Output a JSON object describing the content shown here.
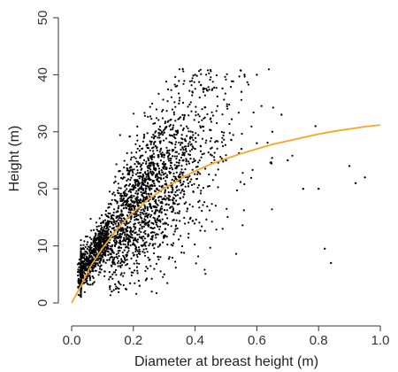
{
  "chart_data": {
    "type": "scatter",
    "xlabel": "Diameter at breast height (m)",
    "ylabel": "Height (m)",
    "xlim": [
      0.0,
      1.0
    ],
    "ylim": [
      0,
      50
    ],
    "xticks": [
      "0.0",
      "0.2",
      "0.4",
      "0.6",
      "0.8",
      "1.0"
    ],
    "yticks": [
      "0",
      "10",
      "20",
      "30",
      "40",
      "50"
    ],
    "grid": false,
    "point_color": "#000000",
    "fit_color": "#f5a623",
    "sample_points": [
      [
        0.03,
        4
      ],
      [
        0.04,
        6
      ],
      [
        0.05,
        8
      ],
      [
        0.06,
        7
      ],
      [
        0.07,
        9
      ],
      [
        0.08,
        11
      ],
      [
        0.1,
        12
      ],
      [
        0.12,
        14
      ],
      [
        0.15,
        16
      ],
      [
        0.18,
        18
      ],
      [
        0.2,
        20
      ],
      [
        0.22,
        21
      ],
      [
        0.25,
        22
      ],
      [
        0.28,
        24
      ],
      [
        0.3,
        26
      ],
      [
        0.35,
        25
      ],
      [
        0.4,
        27
      ],
      [
        0.45,
        26
      ],
      [
        0.5,
        25
      ],
      [
        0.55,
        27
      ],
      [
        0.6,
        28
      ],
      [
        0.65,
        30
      ],
      [
        0.7,
        25
      ],
      [
        0.75,
        20
      ],
      [
        0.8,
        20
      ],
      [
        0.82,
        9.5
      ],
      [
        0.84,
        7
      ],
      [
        0.9,
        24
      ],
      [
        0.92,
        21
      ],
      [
        0.95,
        22
      ],
      [
        0.6,
        40
      ],
      [
        0.56,
        40
      ],
      [
        0.4,
        40
      ],
      [
        0.36,
        41
      ],
      [
        0.55,
        37
      ],
      [
        0.68,
        33
      ],
      [
        0.79,
        31
      ],
      [
        0.13,
        2
      ],
      [
        0.22,
        3
      ],
      [
        0.3,
        5
      ]
    ],
    "fit_curve": [
      [
        0.0,
        0.0
      ],
      [
        0.03,
        3.0
      ],
      [
        0.06,
        6.3
      ],
      [
        0.1,
        9.6
      ],
      [
        0.15,
        13.1
      ],
      [
        0.2,
        15.9
      ],
      [
        0.25,
        18.2
      ],
      [
        0.3,
        20.1
      ],
      [
        0.35,
        21.7
      ],
      [
        0.4,
        23.1
      ],
      [
        0.45,
        24.3
      ],
      [
        0.5,
        25.3
      ],
      [
        0.55,
        26.2
      ],
      [
        0.6,
        27.0
      ],
      [
        0.65,
        27.8
      ],
      [
        0.7,
        28.4
      ],
      [
        0.75,
        29.0
      ],
      [
        0.8,
        29.6
      ],
      [
        0.85,
        30.1
      ],
      [
        0.9,
        30.5
      ],
      [
        0.95,
        30.9
      ],
      [
        1.0,
        31.2
      ]
    ]
  }
}
